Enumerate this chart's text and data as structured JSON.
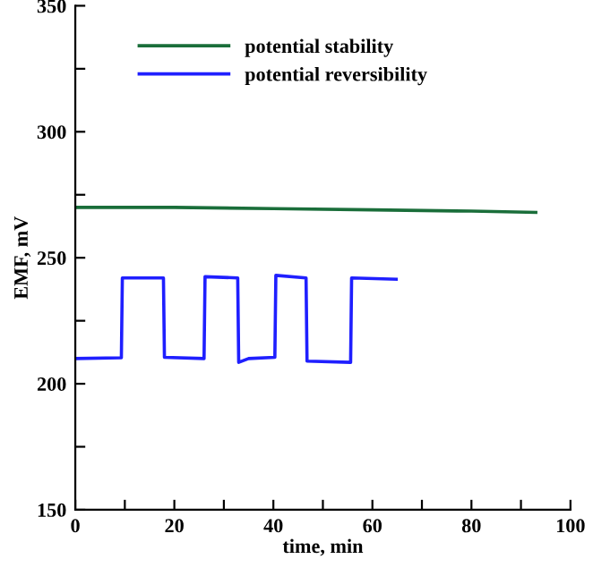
{
  "chart_data": {
    "type": "line",
    "xlabel": "time, min",
    "ylabel": "EMF, mV",
    "xlim": [
      0,
      100
    ],
    "ylim": [
      150,
      350
    ],
    "xticks": [
      0,
      {
        "value": 10,
        "label": null
      },
      20,
      {
        "value": 30,
        "label": null
      },
      40,
      {
        "value": 50,
        "label": null
      },
      60,
      {
        "value": 70,
        "label": null
      },
      80,
      {
        "value": 90,
        "label": null
      },
      100
    ],
    "yticks": [
      150,
      {
        "value": 175,
        "label": null
      },
      200,
      {
        "value": 225,
        "label": null
      },
      250,
      {
        "value": 275,
        "label": null
      },
      300,
      {
        "value": 325,
        "label": null
      },
      350
    ],
    "legend": "top",
    "grid": false,
    "marker": "none",
    "line_style": "solid",
    "series": [
      {
        "name": "potential stability",
        "color": "#1a6e3a",
        "x": [
          0,
          20,
          40,
          60,
          80,
          93
        ],
        "values": [
          270,
          270,
          269.5,
          269,
          268.5,
          268
        ]
      },
      {
        "name": "potential reversibility",
        "color": "#1f1fff",
        "x": [
          0,
          9.3,
          9.5,
          17.8,
          18,
          26,
          26.2,
          32.8,
          33,
          35,
          40.3,
          40.5,
          46.6,
          46.8,
          55.6,
          55.8,
          64.8
        ],
        "values": [
          210,
          210.3,
          242,
          242,
          210.5,
          210,
          242.5,
          242,
          208.5,
          210,
          210.5,
          243,
          242,
          209,
          208.5,
          242,
          241.5
        ]
      }
    ]
  }
}
